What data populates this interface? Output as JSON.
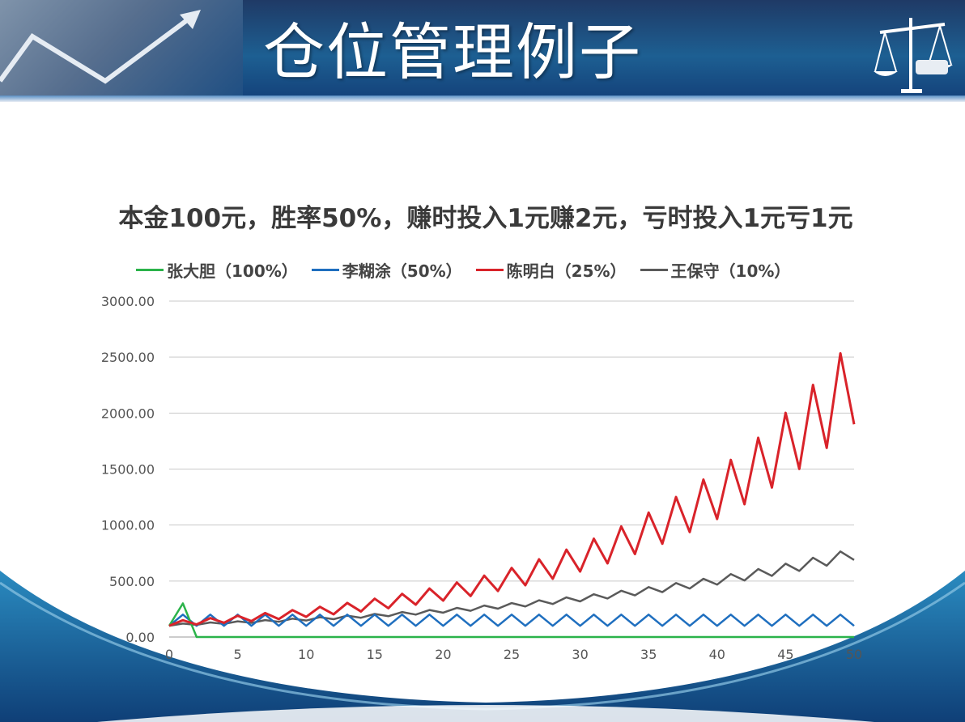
{
  "header": {
    "title": "仓位管理例子"
  },
  "chart_data": {
    "type": "line",
    "title": "本金100元，胜率50%，赚时投入1元赚2元，亏时投入1元亏1元",
    "xlabel": "",
    "ylabel": "",
    "xlim": [
      0,
      50
    ],
    "ylim": [
      0,
      3000
    ],
    "x_ticks": [
      "0",
      "5",
      "10",
      "15",
      "20",
      "25",
      "30",
      "35",
      "40",
      "45",
      "50"
    ],
    "y_ticks": [
      "0.00",
      "500.00",
      "1000.00",
      "1500.00",
      "2000.00",
      "2500.00",
      "3000.00"
    ],
    "grid": "horizontal",
    "legend_position": "top",
    "x": [
      0,
      1,
      2,
      3,
      4,
      5,
      6,
      7,
      8,
      9,
      10,
      11,
      12,
      13,
      14,
      15,
      16,
      17,
      18,
      19,
      20,
      21,
      22,
      23,
      24,
      25,
      26,
      27,
      28,
      29,
      30,
      31,
      32,
      33,
      34,
      35,
      36,
      37,
      38,
      39,
      40,
      41,
      42,
      43,
      44,
      45,
      46,
      47,
      48,
      49,
      50
    ],
    "series": [
      {
        "name": "张大胆（100%）",
        "color": "#2bb34a",
        "values": [
          100,
          300,
          0,
          0,
          0,
          0,
          0,
          0,
          0,
          0,
          0,
          0,
          0,
          0,
          0,
          0,
          0,
          0,
          0,
          0,
          0,
          0,
          0,
          0,
          0,
          0,
          0,
          0,
          0,
          0,
          0,
          0,
          0,
          0,
          0,
          0,
          0,
          0,
          0,
          0,
          0,
          0,
          0,
          0,
          0,
          0,
          0,
          0,
          0,
          0,
          0
        ]
      },
      {
        "name": "李糊涂（50%）",
        "color": "#1f6fbf",
        "values": [
          100,
          200,
          100,
          200,
          100,
          200,
          100,
          200,
          100,
          200,
          100,
          200,
          100,
          200,
          100,
          200,
          100,
          200,
          100,
          200,
          100,
          200,
          100,
          200,
          100,
          200,
          100,
          200,
          100,
          200,
          100,
          200,
          100,
          200,
          100,
          200,
          100,
          200,
          100,
          200,
          100,
          200,
          100,
          200,
          100,
          200,
          100,
          200,
          100,
          200,
          100
        ]
      },
      {
        "name": "陈明白（25%）",
        "color": "#d9232a",
        "values": [
          100,
          150,
          112,
          169,
          127,
          190,
          142,
          214,
          160,
          240,
          180,
          270,
          203,
          304,
          228,
          342,
          257,
          385,
          289,
          433,
          325,
          487,
          366,
          548,
          411,
          617,
          462,
          694,
          520,
          780,
          585,
          878,
          658,
          987,
          741,
          1111,
          833,
          1250,
          937,
          1406,
          1054,
          1582,
          1186,
          1779,
          1335,
          2002,
          1501,
          2252,
          1689,
          2534,
          1900
        ]
      },
      {
        "name": "王保守（10%）",
        "color": "#5a5a5a",
        "values": [
          100,
          120,
          108,
          130,
          117,
          140,
          126,
          151,
          136,
          164,
          147,
          177,
          159,
          191,
          172,
          206,
          186,
          223,
          200,
          241,
          217,
          260,
          234,
          281,
          253,
          303,
          273,
          328,
          295,
          354,
          318,
          382,
          344,
          413,
          372,
          446,
          401,
          482,
          433,
          520,
          468,
          562,
          505,
          607,
          546,
          655,
          590,
          708,
          637,
          764,
          688
        ]
      }
    ]
  }
}
